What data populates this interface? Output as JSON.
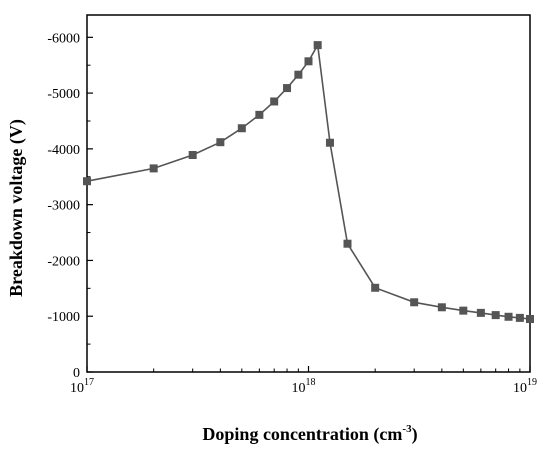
{
  "chart_data": {
    "type": "line",
    "title": "",
    "xlabel": "Doping concentration (cm",
    "xlabel_sup": "-3",
    "xlabel_end": ")",
    "ylabel": "Breakdown voltage (V)",
    "xscale": "log",
    "xlim": [
      1e+17,
      1e+19
    ],
    "ylim": [
      0,
      -6400
    ],
    "x_ticks": [
      {
        "value": 1e+17,
        "base": "10",
        "exp": "17"
      },
      {
        "value": 1e+18,
        "base": "10",
        "exp": "18"
      },
      {
        "value": 1e+19,
        "base": "10",
        "exp": "19"
      }
    ],
    "y_ticks": [
      {
        "value": 0,
        "label": "0"
      },
      {
        "value": -1000,
        "label": "-1000"
      },
      {
        "value": -2000,
        "label": "-2000"
      },
      {
        "value": -3000,
        "label": "-3000"
      },
      {
        "value": -4000,
        "label": "-4000"
      },
      {
        "value": -5000,
        "label": "-5000"
      },
      {
        "value": -6000,
        "label": "-6000"
      }
    ],
    "grid": false,
    "series": [
      {
        "color": "#555555",
        "marker": "square",
        "x": [
          1e+17,
          2e+17,
          3e+17,
          4e+17,
          5e+17,
          6e+17,
          7e+17,
          8e+17,
          9e+17,
          1e+18,
          1.1e+18,
          1.25e+18,
          1.5e+18,
          2e+18,
          3e+18,
          4e+18,
          5e+18,
          6e+18,
          7e+18,
          8e+18,
          9e+18,
          1e+19
        ],
        "y": [
          -3420,
          -3650,
          -3890,
          -4120,
          -4370,
          -4610,
          -4850,
          -5090,
          -5330,
          -5570,
          -5860,
          -4110,
          -2300,
          -1510,
          -1250,
          -1160,
          -1100,
          -1060,
          -1020,
          -990,
          -970,
          -950
        ]
      }
    ]
  }
}
